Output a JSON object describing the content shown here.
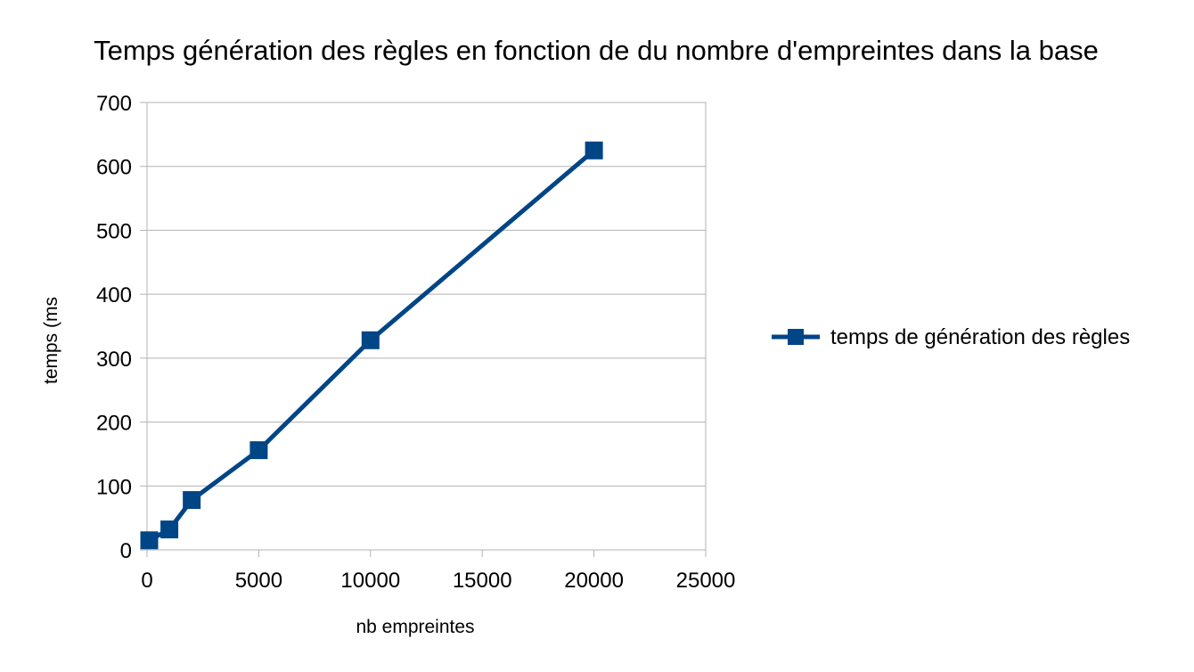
{
  "chart_data": {
    "type": "line",
    "title": "Temps génération des règles en fonction de du nombre d'empreintes dans la base",
    "xlabel": "nb empreintes",
    "ylabel": "temps (ms",
    "xlim": [
      0,
      25000
    ],
    "ylim": [
      0,
      700
    ],
    "x_ticks": [
      0,
      5000,
      10000,
      15000,
      20000,
      25000
    ],
    "y_ticks": [
      0,
      100,
      200,
      300,
      400,
      500,
      600,
      700
    ],
    "grid": "horizontal",
    "legend_position": "right",
    "series": [
      {
        "name": "temps de génération des règles",
        "color": "#004586",
        "marker": "square",
        "points": [
          {
            "x": 100,
            "y": 15
          },
          {
            "x": 1000,
            "y": 32
          },
          {
            "x": 2000,
            "y": 78
          },
          {
            "x": 5000,
            "y": 156
          },
          {
            "x": 10000,
            "y": 328
          },
          {
            "x": 20000,
            "y": 625
          }
        ]
      }
    ]
  }
}
